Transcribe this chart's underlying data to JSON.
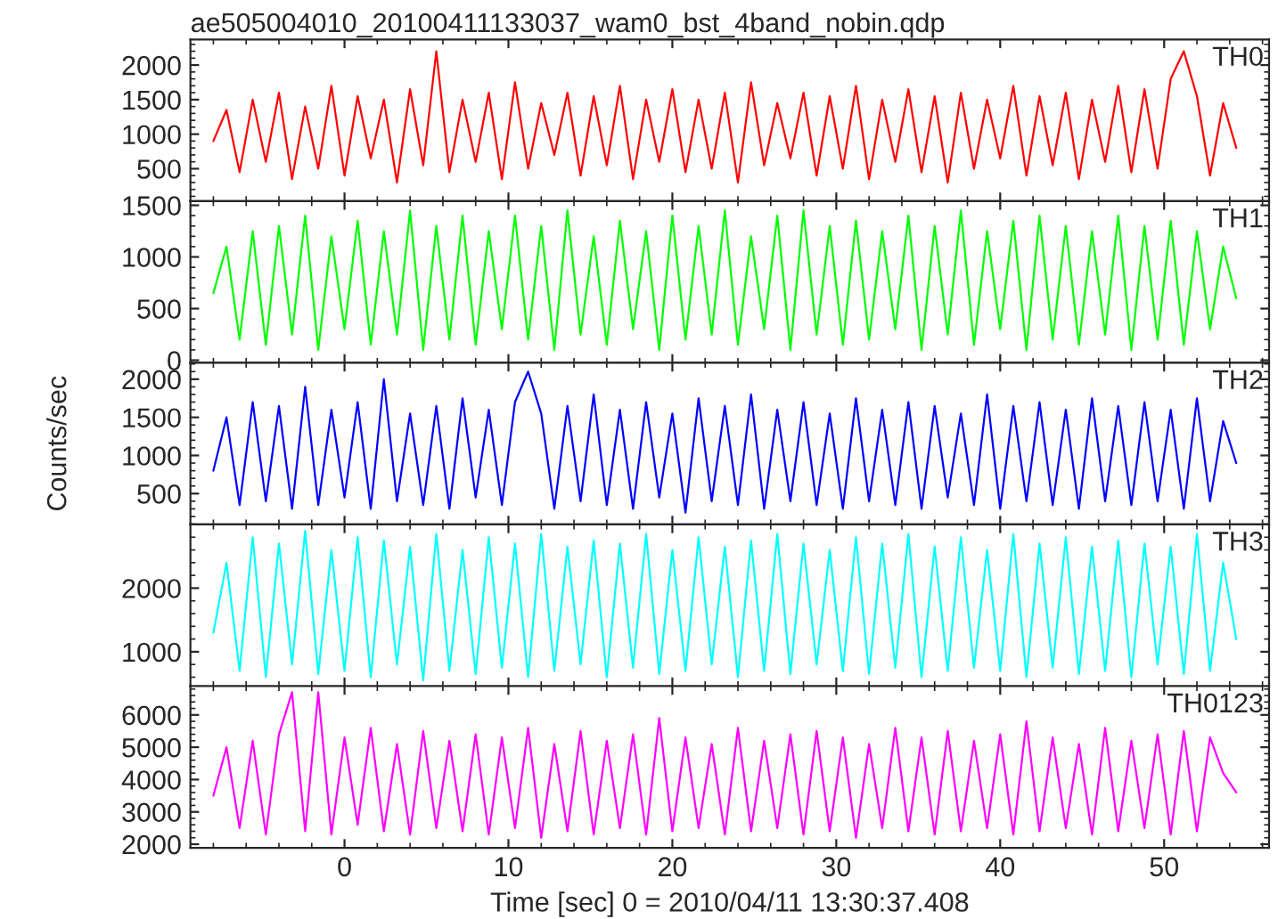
{
  "chart_data": [
    {
      "type": "line",
      "title": "ae505004010_20100411133037_wam0_bst_4band_nobin.qdp",
      "annotations": [
        "TH0"
      ],
      "tick_labels": "y",
      "xlim": [
        -9.4,
        56.4
      ],
      "xticks": [
        {
          "value": 0,
          "label": null
        },
        {
          "value": 10,
          "label": null
        },
        {
          "value": 20,
          "label": null
        },
        {
          "value": 30,
          "label": null
        },
        {
          "value": 40,
          "label": null
        },
        {
          "value": 50,
          "label": null
        }
      ],
      "ylim": [
        30,
        2370
      ],
      "yticks": [
        500,
        1000,
        1500,
        2000
      ],
      "x": [
        -8,
        -7.2,
        -6.4,
        -5.6,
        -4.8,
        -4,
        -3.2,
        -2.4,
        -1.6,
        -0.8,
        0,
        0.8,
        1.6,
        2.4,
        3.2,
        4,
        4.8,
        5.6,
        6.4,
        7.2,
        8,
        8.8,
        9.6,
        10.4,
        11.2,
        12,
        12.8,
        13.6,
        14.4,
        15.2,
        16,
        16.8,
        17.6,
        18.4,
        19.2,
        20,
        20.8,
        21.6,
        22.4,
        23.2,
        24,
        24.8,
        25.6,
        26.4,
        27.2,
        28,
        28.8,
        29.6,
        30.4,
        31.2,
        32,
        32.8,
        33.6,
        34.4,
        35.2,
        36,
        36.8,
        37.6,
        38.4,
        39.2,
        40,
        40.8,
        41.6,
        42.4,
        43.2,
        44,
        44.8,
        45.6,
        46.4,
        47.2,
        48,
        48.8,
        49.6,
        50.4,
        51.2,
        52,
        52.8,
        53.6,
        54.4
      ],
      "series": [
        {
          "color": "#ff0000",
          "values": [
            900,
            1350,
            450,
            1500,
            600,
            1600,
            350,
            1400,
            500,
            1700,
            400,
            1550,
            650,
            1500,
            300,
            1650,
            550,
            2200,
            450,
            1500,
            600,
            1600,
            350,
            1750,
            500,
            1450,
            700,
            1600,
            400,
            1550,
            550,
            1700,
            350,
            1500,
            600,
            1650,
            450,
            1500,
            500,
            1600,
            300,
            1750,
            550,
            1450,
            650,
            1600,
            400,
            1550,
            500,
            1700,
            350,
            1500,
            600,
            1650,
            450,
            1550,
            300,
            1600,
            500,
            1500,
            650,
            1700,
            400,
            1550,
            550,
            1600,
            350,
            1500,
            600,
            1700,
            450,
            1650,
            500,
            1800,
            2200,
            1550,
            400,
            1450,
            800
          ]
        }
      ]
    },
    {
      "type": "line",
      "annotations": [
        "TH1"
      ],
      "tick_labels": "y",
      "xlim": [
        -9.4,
        56.4
      ],
      "xticks": [
        {
          "value": 0,
          "label": null
        },
        {
          "value": 10,
          "label": null
        },
        {
          "value": 20,
          "label": null
        },
        {
          "value": 30,
          "label": null
        },
        {
          "value": 40,
          "label": null
        },
        {
          "value": 50,
          "label": null
        }
      ],
      "ylim": [
        -25,
        1540
      ],
      "yticks": [
        0,
        500,
        1000,
        1500
      ],
      "x": [
        -8,
        -7.2,
        -6.4,
        -5.6,
        -4.8,
        -4,
        -3.2,
        -2.4,
        -1.6,
        -0.8,
        0,
        0.8,
        1.6,
        2.4,
        3.2,
        4,
        4.8,
        5.6,
        6.4,
        7.2,
        8,
        8.8,
        9.6,
        10.4,
        11.2,
        12,
        12.8,
        13.6,
        14.4,
        15.2,
        16,
        16.8,
        17.6,
        18.4,
        19.2,
        20,
        20.8,
        21.6,
        22.4,
        23.2,
        24,
        24.8,
        25.6,
        26.4,
        27.2,
        28,
        28.8,
        29.6,
        30.4,
        31.2,
        32,
        32.8,
        33.6,
        34.4,
        35.2,
        36,
        36.8,
        37.6,
        38.4,
        39.2,
        40,
        40.8,
        41.6,
        42.4,
        43.2,
        44,
        44.8,
        45.6,
        46.4,
        47.2,
        48,
        48.8,
        49.6,
        50.4,
        51.2,
        52,
        52.8,
        53.6,
        54.4
      ],
      "series": [
        {
          "color": "#00ff00",
          "values": [
            650,
            1100,
            200,
            1250,
            150,
            1300,
            250,
            1400,
            100,
            1200,
            300,
            1350,
            150,
            1250,
            250,
            1450,
            100,
            1300,
            200,
            1400,
            150,
            1250,
            300,
            1400,
            200,
            1300,
            100,
            1450,
            250,
            1200,
            150,
            1350,
            300,
            1250,
            100,
            1400,
            200,
            1300,
            250,
            1450,
            150,
            1200,
            300,
            1400,
            100,
            1450,
            250,
            1300,
            150,
            1350,
            200,
            1250,
            300,
            1400,
            100,
            1300,
            250,
            1450,
            150,
            1250,
            300,
            1350,
            100,
            1400,
            200,
            1300,
            150,
            1250,
            250,
            1400,
            100,
            1300,
            200,
            1350,
            150,
            1250,
            300,
            1100,
            600
          ]
        }
      ]
    },
    {
      "type": "line",
      "annotations": [
        "TH2"
      ],
      "ylabel": "Counts/sec",
      "tick_labels": "y",
      "xlim": [
        -9.4,
        56.4
      ],
      "xticks": [
        {
          "value": 0,
          "label": null
        },
        {
          "value": 10,
          "label": null
        },
        {
          "value": 20,
          "label": null
        },
        {
          "value": 30,
          "label": null
        },
        {
          "value": 40,
          "label": null
        },
        {
          "value": 50,
          "label": null
        }
      ],
      "ylim": [
        95,
        2215
      ],
      "yticks": [
        500,
        1000,
        1500,
        2000
      ],
      "x": [
        -8,
        -7.2,
        -6.4,
        -5.6,
        -4.8,
        -4,
        -3.2,
        -2.4,
        -1.6,
        -0.8,
        0,
        0.8,
        1.6,
        2.4,
        3.2,
        4,
        4.8,
        5.6,
        6.4,
        7.2,
        8,
        8.8,
        9.6,
        10.4,
        11.2,
        12,
        12.8,
        13.6,
        14.4,
        15.2,
        16,
        16.8,
        17.6,
        18.4,
        19.2,
        20,
        20.8,
        21.6,
        22.4,
        23.2,
        24,
        24.8,
        25.6,
        26.4,
        27.2,
        28,
        28.8,
        29.6,
        30.4,
        31.2,
        32,
        32.8,
        33.6,
        34.4,
        35.2,
        36,
        36.8,
        37.6,
        38.4,
        39.2,
        40,
        40.8,
        41.6,
        42.4,
        43.2,
        44,
        44.8,
        45.6,
        46.4,
        47.2,
        48,
        48.8,
        49.6,
        50.4,
        51.2,
        52,
        52.8,
        53.6,
        54.4
      ],
      "series": [
        {
          "color": "#0000ff",
          "values": [
            800,
            1500,
            350,
            1700,
            400,
            1650,
            300,
            1900,
            350,
            1600,
            450,
            1700,
            300,
            2000,
            400,
            1550,
            350,
            1650,
            300,
            1750,
            450,
            1600,
            350,
            1700,
            2100,
            1550,
            300,
            1650,
            400,
            1800,
            350,
            1600,
            300,
            1700,
            450,
            1550,
            250,
            1750,
            400,
            1650,
            350,
            1800,
            300,
            1600,
            400,
            1700,
            350,
            1550,
            300,
            1750,
            400,
            1600,
            350,
            1700,
            300,
            1650,
            450,
            1550,
            350,
            1800,
            300,
            1650,
            400,
            1700,
            350,
            1600,
            300,
            1750,
            400,
            1650,
            350,
            1700,
            400,
            1600,
            300,
            1750,
            400,
            1450,
            900
          ]
        }
      ]
    },
    {
      "type": "line",
      "annotations": [
        "TH3"
      ],
      "tick_labels": "y",
      "xlim": [
        -9.4,
        56.4
      ],
      "xticks": [
        {
          "value": 0,
          "label": null
        },
        {
          "value": 10,
          "label": null
        },
        {
          "value": 20,
          "label": null
        },
        {
          "value": 30,
          "label": null
        },
        {
          "value": 40,
          "label": null
        },
        {
          "value": 50,
          "label": null
        }
      ],
      "ylim": [
        460,
        3000
      ],
      "yticks": [
        1000,
        2000
      ],
      "x": [
        -8,
        -7.2,
        -6.4,
        -5.6,
        -4.8,
        -4,
        -3.2,
        -2.4,
        -1.6,
        -0.8,
        0,
        0.8,
        1.6,
        2.4,
        3.2,
        4,
        4.8,
        5.6,
        6.4,
        7.2,
        8,
        8.8,
        9.6,
        10.4,
        11.2,
        12,
        12.8,
        13.6,
        14.4,
        15.2,
        16,
        16.8,
        17.6,
        18.4,
        19.2,
        20,
        20.8,
        21.6,
        22.4,
        23.2,
        24,
        24.8,
        25.6,
        26.4,
        27.2,
        28,
        28.8,
        29.6,
        30.4,
        31.2,
        32,
        32.8,
        33.6,
        34.4,
        35.2,
        36,
        36.8,
        37.6,
        38.4,
        39.2,
        40,
        40.8,
        41.6,
        42.4,
        43.2,
        44,
        44.8,
        45.6,
        46.4,
        47.2,
        48,
        48.8,
        49.6,
        50.4,
        51.2,
        52,
        52.8,
        53.6,
        54.4
      ],
      "series": [
        {
          "color": "#00ffff",
          "values": [
            1300,
            2400,
            700,
            2800,
            600,
            2700,
            800,
            2900,
            650,
            2600,
            700,
            2800,
            600,
            2750,
            800,
            2650,
            550,
            2850,
            700,
            2600,
            650,
            2800,
            750,
            2700,
            600,
            2850,
            700,
            2650,
            800,
            2750,
            600,
            2700,
            750,
            2850,
            650,
            2600,
            700,
            2800,
            800,
            2650,
            600,
            2750,
            700,
            2850,
            650,
            2700,
            800,
            2600,
            700,
            2800,
            650,
            2700,
            750,
            2850,
            600,
            2650,
            700,
            2800,
            750,
            2600,
            700,
            2850,
            600,
            2700,
            750,
            2800,
            650,
            2650,
            700,
            2750,
            600,
            2700,
            800,
            2650,
            650,
            2850,
            700,
            2400,
            1200
          ]
        }
      ]
    },
    {
      "type": "line",
      "annotations": [
        "TH0123"
      ],
      "xlabel": "Time [sec] 0 = 2010/04/11 13:30:37.408",
      "xlim": [
        -9.4,
        56.4
      ],
      "xticks": [
        0,
        10,
        20,
        30,
        40,
        50
      ],
      "ylim": [
        1890,
        6890
      ],
      "yticks": [
        2000,
        3000,
        4000,
        5000,
        6000
      ],
      "x": [
        -8,
        -7.2,
        -6.4,
        -5.6,
        -4.8,
        -4,
        -3.2,
        -2.4,
        -1.6,
        -0.8,
        0,
        0.8,
        1.6,
        2.4,
        3.2,
        4,
        4.8,
        5.6,
        6.4,
        7.2,
        8,
        8.8,
        9.6,
        10.4,
        11.2,
        12,
        12.8,
        13.6,
        14.4,
        15.2,
        16,
        16.8,
        17.6,
        18.4,
        19.2,
        20,
        20.8,
        21.6,
        22.4,
        23.2,
        24,
        24.8,
        25.6,
        26.4,
        27.2,
        28,
        28.8,
        29.6,
        30.4,
        31.2,
        32,
        32.8,
        33.6,
        34.4,
        35.2,
        36,
        36.8,
        37.6,
        38.4,
        39.2,
        40,
        40.8,
        41.6,
        42.4,
        43.2,
        44,
        44.8,
        45.6,
        46.4,
        47.2,
        48,
        48.8,
        49.6,
        50.4,
        51.2,
        52,
        52.8,
        53.6,
        54.4
      ],
      "series": [
        {
          "color": "#ff00ff",
          "values": [
            3500,
            5000,
            2500,
            5200,
            2300,
            5400,
            6700,
            2400,
            6700,
            2300,
            5300,
            2600,
            5600,
            2400,
            5100,
            2300,
            5500,
            2500,
            5200,
            2400,
            5400,
            2300,
            5300,
            2500,
            5600,
            2200,
            5100,
            2400,
            5500,
            2300,
            5200,
            2500,
            5400,
            2300,
            5900,
            2400,
            5300,
            2500,
            5100,
            2300,
            5600,
            2400,
            5200,
            2500,
            5400,
            2300,
            5500,
            2400,
            5300,
            2200,
            5100,
            2500,
            5600,
            2400,
            5300,
            2300,
            5500,
            2400,
            5200,
            2500,
            5400,
            2300,
            5800,
            2400,
            5300,
            2500,
            5100,
            2300,
            5600,
            2400,
            5200,
            2500,
            5400,
            2300,
            5500,
            2400,
            5300,
            4200,
            3600
          ]
        }
      ]
    }
  ]
}
